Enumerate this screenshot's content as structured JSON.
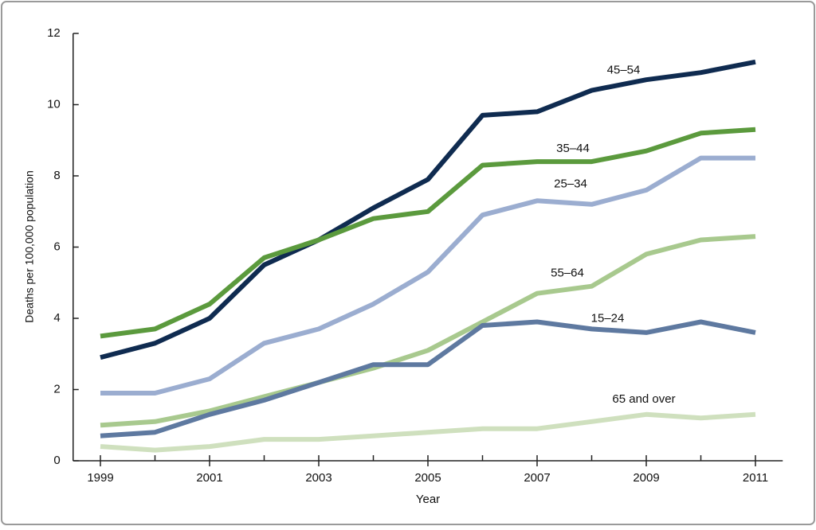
{
  "chart_data": {
    "type": "line",
    "x_label": "Year",
    "y_label": "Deaths per 100,000 population",
    "x": [
      1999,
      2000,
      2001,
      2002,
      2003,
      2004,
      2005,
      2006,
      2007,
      2008,
      2009,
      2010,
      2011
    ],
    "series": [
      {
        "name": "45–54",
        "color": "#0f2b50",
        "values": [
          2.9,
          3.3,
          4.0,
          5.5,
          6.2,
          7.1,
          7.9,
          9.7,
          9.8,
          10.4,
          10.7,
          10.9,
          11.2
        ]
      },
      {
        "name": "35–44",
        "color": "#5b9a3d",
        "values": [
          3.5,
          3.7,
          4.4,
          5.7,
          6.2,
          6.8,
          7.0,
          8.3,
          8.4,
          8.4,
          8.7,
          9.2,
          9.3
        ]
      },
      {
        "name": "25–34",
        "color": "#9badd0",
        "values": [
          1.9,
          1.9,
          2.3,
          3.3,
          3.7,
          4.4,
          5.3,
          6.9,
          7.3,
          7.2,
          7.6,
          8.5,
          8.5
        ]
      },
      {
        "name": "55–64",
        "color": "#a8c98e",
        "values": [
          1.0,
          1.1,
          1.4,
          1.8,
          2.2,
          2.6,
          3.1,
          3.9,
          4.7,
          4.9,
          5.8,
          6.2,
          6.3
        ]
      },
      {
        "name": "15–24",
        "color": "#5e79a0",
        "values": [
          0.7,
          0.8,
          1.3,
          1.7,
          2.2,
          2.7,
          2.7,
          3.8,
          3.9,
          3.7,
          3.6,
          3.9,
          3.6
        ]
      },
      {
        "name": "65 and over",
        "color": "#cfe0be",
        "values": [
          0.4,
          0.3,
          0.4,
          0.6,
          0.6,
          0.7,
          0.8,
          0.9,
          0.9,
          1.1,
          1.3,
          1.2,
          1.3
        ]
      }
    ],
    "xlim": [
      1998.5,
      2011.5
    ],
    "xticks": [
      1999,
      2001,
      2003,
      2005,
      2007,
      2009,
      2011
    ],
    "ylim": [
      0,
      12
    ],
    "yticks": [
      0,
      2,
      4,
      6,
      8,
      10,
      12
    ],
    "grid": false
  }
}
